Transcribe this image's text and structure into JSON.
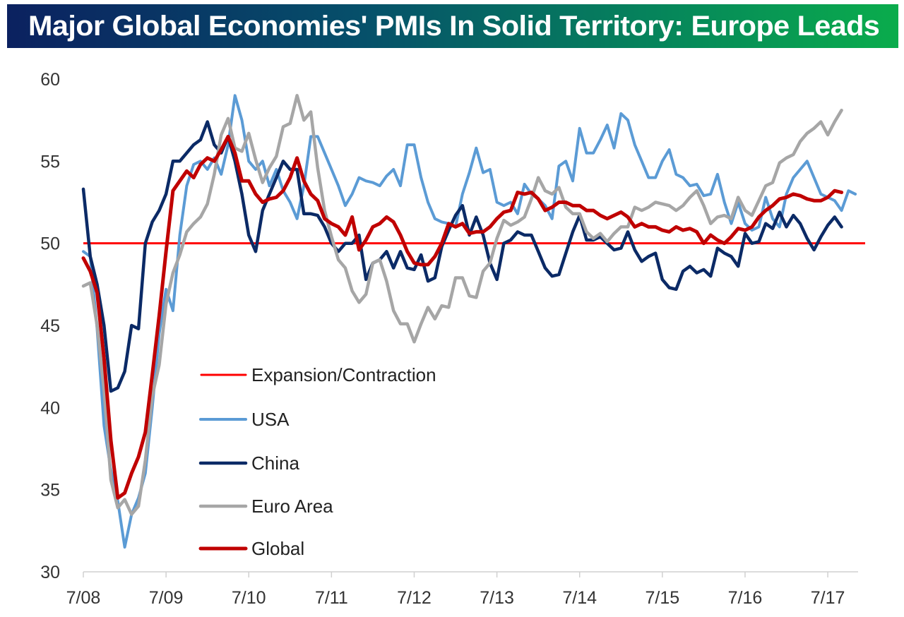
{
  "chart_data": {
    "type": "line",
    "title": "Major Global Economies' PMIs In Solid Territory: Europe Leads",
    "xlabel": "",
    "ylabel": "",
    "ylim": [
      30,
      60
    ],
    "yticks": [
      "30",
      "35",
      "40",
      "45",
      "50",
      "55",
      "60"
    ],
    "xticks": [
      "7/08",
      "7/09",
      "7/10",
      "7/11",
      "7/12",
      "7/13",
      "7/14",
      "7/15",
      "7/16",
      "7/17"
    ],
    "x_start": "2008-07",
    "frequency": "monthly",
    "grid": false,
    "legend_position": "lower-left-inside",
    "reference_line": {
      "name": "Expansion/Contraction",
      "value": 50,
      "color": "#ff0000"
    },
    "series": [
      {
        "name": "USA",
        "color": "#5b9bd5",
        "values": [
          49.5,
          49.2,
          44.8,
          38.9,
          36.2,
          34.3,
          31.5,
          33.5,
          34.5,
          36,
          40,
          44.5,
          47.2,
          45.9,
          50.5,
          53.5,
          54.8,
          55,
          54.5,
          55.2,
          54.2,
          56,
          59,
          57.5,
          55,
          54.5,
          55,
          53.5,
          54.5,
          53.2,
          52.5,
          51.5,
          53.5,
          56.5,
          56.5,
          55.5,
          54.5,
          53.5,
          52.3,
          53,
          54,
          53.8,
          53.7,
          53.5,
          54.1,
          54.5,
          53.5,
          56,
          56,
          54,
          52.5,
          51.5,
          51.3,
          51.2,
          51,
          53,
          54.3,
          55.8,
          54.3,
          54.5,
          52.5,
          52.3,
          52.5,
          51.8,
          53.6,
          53,
          52.7,
          52.3,
          51.5,
          54.7,
          55,
          53.8,
          57,
          55.5,
          55.5,
          56.3,
          57.2,
          55.8,
          57.9,
          57.5,
          56,
          55,
          54,
          54,
          55,
          55.7,
          54.2,
          54,
          53.5,
          53.6,
          52.9,
          53,
          54.2,
          52.5,
          51.2,
          52.5,
          51.2,
          50.8,
          51,
          52.8,
          51.5,
          51,
          53,
          54,
          54.5,
          55,
          54,
          53,
          52.8,
          52.6,
          52,
          53.2,
          53
        ]
      },
      {
        "name": "China",
        "color": "#0b2a66",
        "values": [
          53.3,
          49.2,
          47.5,
          45,
          41,
          41.2,
          42.2,
          45,
          44.8,
          50,
          51.3,
          52,
          53,
          55,
          55,
          55.5,
          56,
          56.3,
          57.4,
          56,
          55.5,
          56.5,
          55,
          53,
          50.5,
          49.5,
          52,
          53,
          54,
          55,
          54.5,
          54.5,
          51.8,
          51.8,
          51.7,
          51,
          50,
          49.5,
          50,
          50,
          50.5,
          47.8,
          48.8,
          49,
          49.5,
          48.5,
          49.5,
          48.5,
          48.4,
          49.3,
          47.7,
          47.9,
          49.8,
          50.8,
          51.7,
          52.3,
          50.5,
          51.6,
          50.5,
          48.8,
          47.8,
          50,
          50.2,
          50.7,
          50.5,
          50.5,
          49.5,
          48.5,
          48,
          48.1,
          49.4,
          50.7,
          51.7,
          50.2,
          50.2,
          50.4,
          50,
          49.6,
          49.7,
          50.7,
          49.6,
          48.9,
          49.2,
          49.4,
          47.8,
          47.3,
          47.2,
          48.3,
          48.6,
          48.2,
          48.4,
          48,
          49.7,
          49.4,
          49.2,
          48.6,
          50.6,
          50,
          50.1,
          51.2,
          50.9,
          51.9,
          51,
          51.7,
          51.2,
          50.3,
          49.6,
          50.4,
          51.1,
          51.6,
          51
        ]
      },
      {
        "name": "Euro Area",
        "color": "#a6a6a6",
        "values": [
          47.4,
          47.6,
          45,
          41.1,
          35.6,
          33.9,
          34.4,
          33.5,
          34,
          36.8,
          40.7,
          42.6,
          46.3,
          48.2,
          49.3,
          50.7,
          51.2,
          51.6,
          52.4,
          54.2,
          56.6,
          57.6,
          55.8,
          55.6,
          56.7,
          55.1,
          53.7,
          54.6,
          55.3,
          57.1,
          57.3,
          59,
          57.5,
          58,
          54.6,
          52,
          50.4,
          49,
          48.5,
          47.1,
          46.4,
          46.9,
          48.8,
          49,
          47.7,
          45.9,
          45.1,
          45.1,
          44,
          45.1,
          46.1,
          45.4,
          46.2,
          46.1,
          47.9,
          47.9,
          46.8,
          46.7,
          48.3,
          48.8,
          50.3,
          51.4,
          51.1,
          51.3,
          51.6,
          52.7,
          54,
          53.2,
          53,
          53.4,
          52.2,
          51.8,
          51.8,
          50.7,
          50.3,
          50.6,
          50.1,
          50.6,
          51,
          51,
          52.2,
          52,
          52.2,
          52.5,
          52.4,
          52.3,
          52,
          52.3,
          52.8,
          53.2,
          52.3,
          51.2,
          51.6,
          51.7,
          51.5,
          52.8,
          52,
          51.7,
          52.6,
          53.5,
          53.7,
          54.9,
          55.2,
          55.4,
          56.2,
          56.7,
          57,
          57.4,
          56.6,
          57.4,
          58.1
        ]
      },
      {
        "name": "Global",
        "color": "#c00000",
        "values": [
          49.1,
          48.3,
          47,
          43,
          38,
          34.5,
          34.8,
          36,
          37,
          38.5,
          42,
          45.6,
          49.5,
          53.2,
          53.8,
          54.4,
          54,
          54.8,
          55.2,
          55,
          55.7,
          56.5,
          55.5,
          53.8,
          53.8,
          53,
          52.5,
          52.7,
          52.8,
          53.2,
          54,
          55.2,
          53.8,
          53,
          52.6,
          51.5,
          51.2,
          51,
          50.5,
          51.6,
          49.6,
          50.2,
          51,
          51.2,
          51.6,
          51.3,
          50.5,
          49.5,
          48.8,
          48.7,
          48.7,
          49.2,
          50,
          51.2,
          51,
          51.2,
          50.6,
          50.7,
          50.7,
          51,
          51.5,
          51.9,
          52,
          53.1,
          53,
          53.1,
          52.7,
          52,
          52.2,
          52.5,
          52.5,
          52.3,
          52.3,
          52,
          52,
          51.7,
          51.5,
          51.7,
          51.9,
          51.6,
          51,
          51.2,
          51,
          51,
          50.8,
          50.7,
          51,
          50.8,
          50.9,
          50.7,
          50,
          50.5,
          50.2,
          50,
          50.4,
          50.9,
          50.8,
          51,
          51.6,
          52,
          52.3,
          52.7,
          52.8,
          53,
          52.9,
          52.7,
          52.6,
          52.6,
          52.8,
          53.2,
          53.1
        ]
      }
    ],
    "legend": [
      "Expansion/Contraction",
      "USA",
      "China",
      "Euro Area",
      "Global"
    ]
  }
}
